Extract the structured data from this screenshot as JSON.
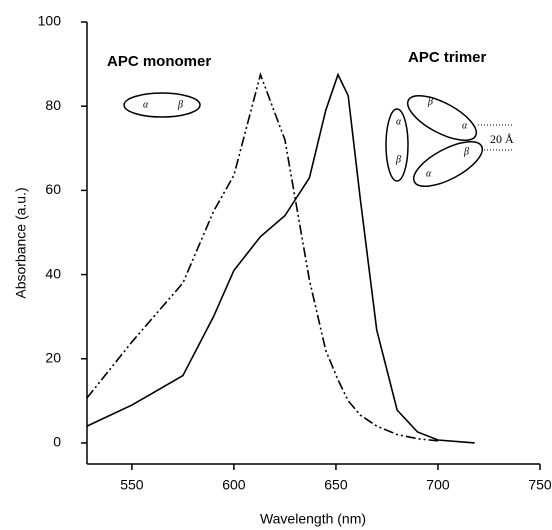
{
  "chart_data": {
    "type": "line",
    "x_label": "Wavelength (nm)",
    "y_label": "Absorbance (a.u.)",
    "x": [
      528,
      550,
      575,
      590,
      600,
      613,
      625,
      637,
      645,
      651,
      656,
      662,
      670,
      680,
      690,
      700,
      718
    ],
    "series": [
      {
        "name": "APC monomer",
        "color": "#000000",
        "style": "dash-dot-dot",
        "values": [
          10.7,
          24,
          38,
          55,
          63.6,
          87.5,
          72,
          38.7,
          22,
          15,
          10,
          6.6,
          4,
          2,
          1,
          0.5,
          null
        ]
      },
      {
        "name": "APC trimer",
        "color": "#000000",
        "style": "solid",
        "values": [
          4,
          9,
          16,
          30,
          41,
          49,
          54,
          63,
          79,
          87.5,
          82.5,
          57.7,
          26.8,
          7.8,
          2.6,
          0.7,
          0
        ]
      }
    ],
    "subunits": [
      "α",
      "β"
    ],
    "trimer_distance": "20 Å",
    "xlim": [
      528,
      750
    ],
    "xticks": [
      550,
      600,
      650,
      700,
      750
    ],
    "ylim": [
      -5,
      100
    ],
    "yticks": [
      0,
      20,
      40,
      60,
      80,
      100
    ]
  }
}
